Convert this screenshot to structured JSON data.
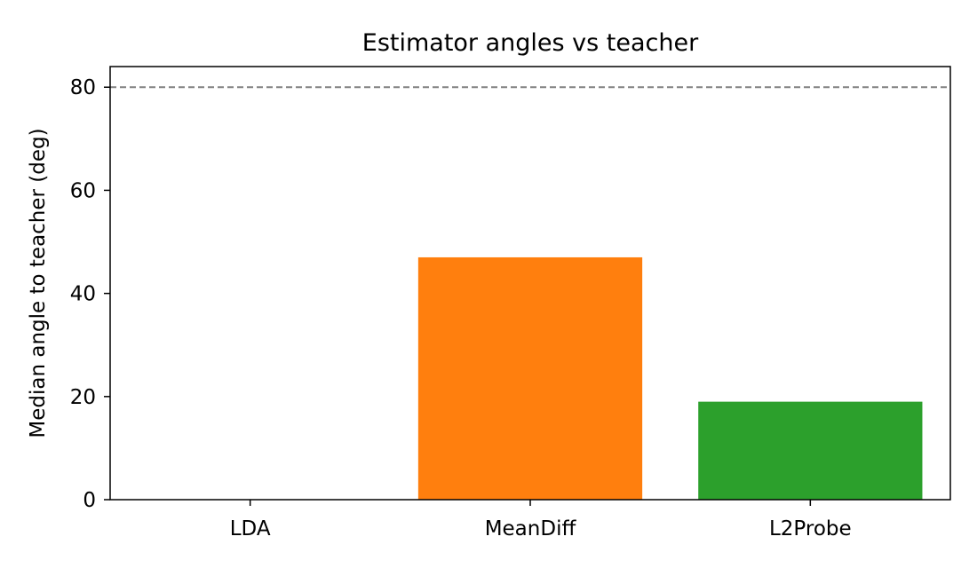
{
  "chart_data": {
    "type": "bar",
    "title": "Estimator angles vs teacher",
    "xlabel": "",
    "ylabel": "Median angle to teacher (deg)",
    "categories": [
      "LDA",
      "MeanDiff",
      "L2Probe"
    ],
    "values": [
      0,
      47,
      19
    ],
    "colors": [
      "#1f77b4",
      "#ff7f0e",
      "#2ca02c"
    ],
    "ylim": [
      0,
      84
    ],
    "yticks": [
      0,
      20,
      40,
      60,
      80
    ],
    "reference_line": {
      "y": 80,
      "style": "dashed",
      "color": "#808080"
    },
    "grid": false,
    "legend": "none"
  }
}
